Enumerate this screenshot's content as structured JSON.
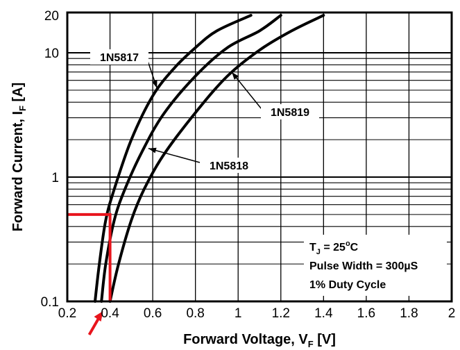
{
  "chart_data": {
    "type": "line",
    "title": "",
    "xlabel": {
      "main": "Forward Voltage, V",
      "sub": "F",
      "unit": "[V]"
    },
    "ylabel": {
      "main": "Forward Current, I",
      "sub": "F",
      "unit": "[A]"
    },
    "xlim": [
      0.2,
      2.0
    ],
    "ylim": [
      0.1,
      20
    ],
    "yscale": "log",
    "x_ticks": [
      "0.2",
      "0.4",
      "0.6",
      "0.8",
      "1",
      "1.2",
      "1.4",
      "1.6",
      "1.8",
      "2"
    ],
    "y_ticks": [
      {
        "value": 0.1,
        "label": "0.1"
      },
      {
        "value": 1,
        "label": "1"
      },
      {
        "value": 10,
        "label": "10"
      },
      {
        "value": 20,
        "label": "20"
      }
    ],
    "grid": true,
    "series": [
      {
        "name": "1N5817",
        "points": [
          [
            0.33,
            0.1
          ],
          [
            0.35,
            0.2
          ],
          [
            0.38,
            0.45
          ],
          [
            0.42,
            0.8
          ],
          [
            0.5,
            2.0
          ],
          [
            0.6,
            4.5
          ],
          [
            0.7,
            7.5
          ],
          [
            0.8,
            11
          ],
          [
            0.9,
            15
          ],
          [
            1.06,
            20
          ]
        ]
      },
      {
        "name": "1N5818",
        "points": [
          [
            0.36,
            0.1
          ],
          [
            0.38,
            0.2
          ],
          [
            0.42,
            0.45
          ],
          [
            0.47,
            0.8
          ],
          [
            0.55,
            1.6
          ],
          [
            0.65,
            3.2
          ],
          [
            0.8,
            6.5
          ],
          [
            0.95,
            11
          ],
          [
            1.1,
            15
          ],
          [
            1.2,
            20
          ]
        ]
      },
      {
        "name": "1N5819",
        "points": [
          [
            0.4,
            0.1
          ],
          [
            0.44,
            0.2
          ],
          [
            0.5,
            0.45
          ],
          [
            0.56,
            0.8
          ],
          [
            0.65,
            1.5
          ],
          [
            0.8,
            3.3
          ],
          [
            0.95,
            6.5
          ],
          [
            1.1,
            10.5
          ],
          [
            1.25,
            15
          ],
          [
            1.4,
            20
          ]
        ]
      }
    ],
    "series_labels": [
      {
        "text": "1N5817",
        "points_to": [
          0.62,
          5.2
        ]
      },
      {
        "text": "1N5818",
        "points_to": [
          0.58,
          1.7
        ]
      },
      {
        "text": "1N5819",
        "points_to": [
          0.97,
          7.0
        ]
      }
    ],
    "annotation_lines": [
      {
        "color": "#e8141c",
        "points": [
          [
            0.2,
            0.5
          ],
          [
            0.4,
            0.5
          ],
          [
            0.4,
            0.1
          ]
        ]
      }
    ],
    "marker_arrow": {
      "color": "#e8141c",
      "points_to_x": 0.4
    },
    "conditions": {
      "tj_main": "T",
      "tj_sub": "J",
      "tj_eq": " = 25",
      "tj_sup": "o",
      "tj_unit": "C",
      "line2": "Pulse Width = 300µS",
      "line3": "1% Duty Cycle"
    }
  }
}
